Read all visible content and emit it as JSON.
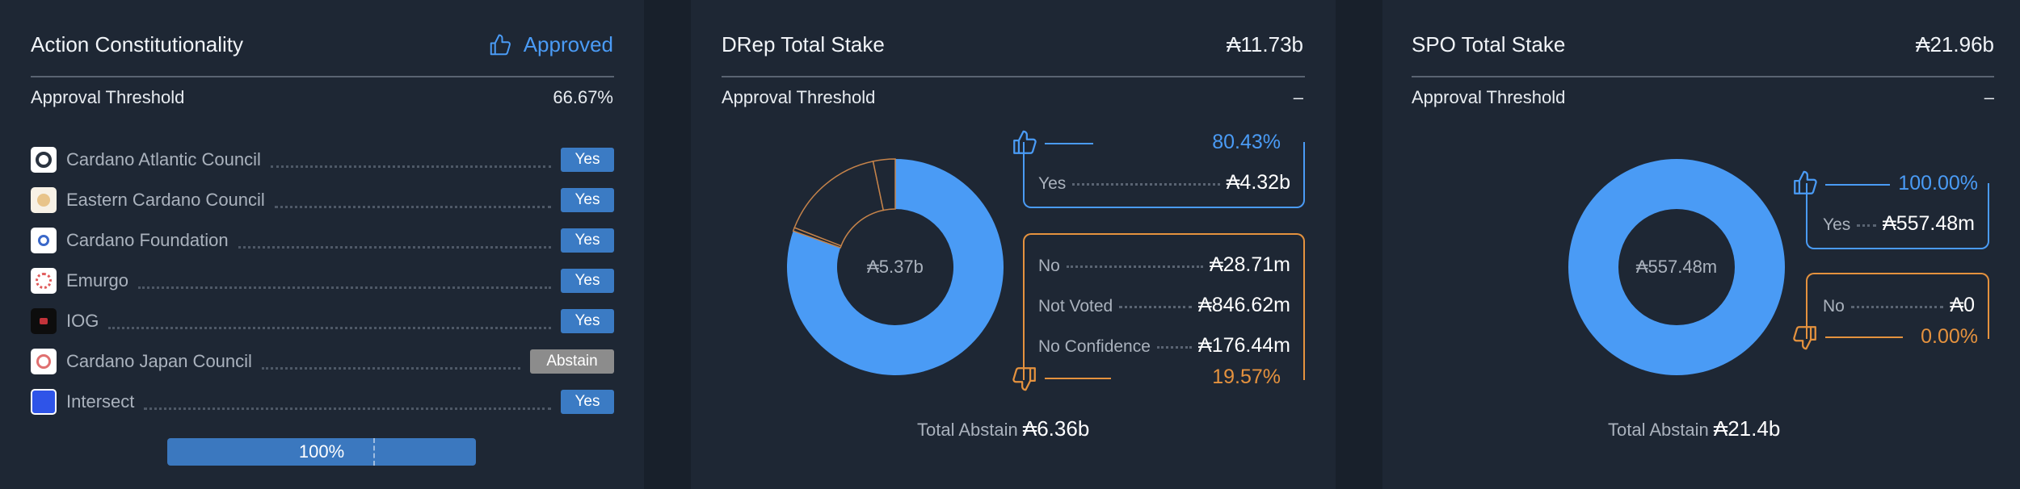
{
  "constitutionality": {
    "title": "Action Constitutionality",
    "status": "Approved",
    "threshold_label": "Approval Threshold",
    "threshold_value": "66.67%",
    "members": [
      {
        "name": "Cardano Atlantic Council",
        "vote": "Yes"
      },
      {
        "name": "Eastern Cardano Council",
        "vote": "Yes"
      },
      {
        "name": "Cardano Foundation",
        "vote": "Yes"
      },
      {
        "name": "Emurgo",
        "vote": "Yes"
      },
      {
        "name": "IOG",
        "vote": "Yes"
      },
      {
        "name": "Cardano Japan Council",
        "vote": "Abstain"
      },
      {
        "name": "Intersect",
        "vote": "Yes"
      }
    ],
    "progress": {
      "label": "100%",
      "value": 1.0,
      "threshold": 0.6667
    },
    "colors": {
      "yes": "#3b7bc4",
      "abstain": "#8c8c8c",
      "approved": "#4a9bf5"
    }
  },
  "drep": {
    "title": "DRep Total Stake",
    "total_stake": "₳11.73b",
    "threshold_label": "Approval Threshold",
    "threshold_value": "–",
    "center": "₳5.37b",
    "yes_pct": "80.43%",
    "no_pct": "19.57%",
    "yes": {
      "label": "Yes",
      "value": "₳4.32b"
    },
    "no_rows": [
      {
        "label": "No",
        "value": "₳28.71m"
      },
      {
        "label": "Not Voted",
        "value": "₳846.62m"
      },
      {
        "label": "No Confidence",
        "value": "₳176.44m"
      }
    ],
    "total_abstain_label": "Total Abstain",
    "total_abstain_value": "₳6.36b"
  },
  "spo": {
    "title": "SPO Total Stake",
    "total_stake": "₳21.96b",
    "threshold_label": "Approval Threshold",
    "threshold_value": "–",
    "center": "₳557.48m",
    "yes_pct": "100.00%",
    "no_pct": "0.00%",
    "yes": {
      "label": "Yes",
      "value": "₳557.48m"
    },
    "no_rows": [
      {
        "label": "No",
        "value": "₳0"
      }
    ],
    "total_abstain_label": "Total Abstain",
    "total_abstain_value": "₳21.4b"
  },
  "chart_data": [
    {
      "type": "pie",
      "categories": [
        "Yes",
        "No",
        "Not Voted",
        "No Confidence"
      ],
      "values": [
        4.32,
        0.02871,
        0.84662,
        0.17644
      ],
      "colors": [
        "#4a9bf5",
        "#1e2734",
        "#1e2734",
        "#1e2734"
      ]
    },
    {
      "type": "pie",
      "categories": [
        "Yes",
        "No"
      ],
      "values": [
        557.48,
        0
      ],
      "colors": [
        "#4a9bf5",
        "#1e2734"
      ]
    }
  ]
}
